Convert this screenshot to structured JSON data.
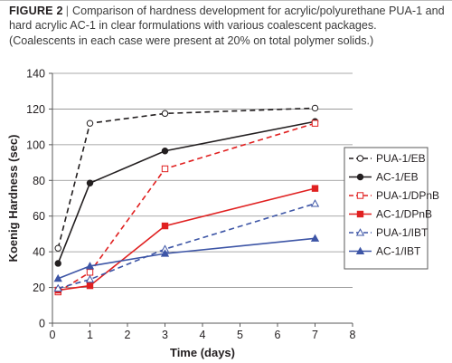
{
  "caption": {
    "figure_label": "FIGURE 2",
    "separator": "|",
    "text": "Comparison of hardness development for acrylic/polyurethane PUA-1 and hard acrylic AC-1 in clear formulations with various coalescent packages. (Coalescents in each case were present at 20% on total polymer solids.)"
  },
  "chart_data": {
    "type": "line",
    "title": "",
    "xlabel": "Time (days)",
    "ylabel": "Koenig Hardness (sec)",
    "xlim": [
      0,
      8
    ],
    "ylim": [
      0,
      140
    ],
    "xticks": [
      0,
      1,
      2,
      3,
      4,
      5,
      6,
      7,
      8
    ],
    "yticks": [
      0,
      20,
      40,
      60,
      80,
      100,
      120,
      140
    ],
    "grid": "horizontal",
    "legend_position": "right",
    "series": [
      {
        "name": "PUA-1/EB",
        "color": "#231f20",
        "dash": "dashed",
        "marker": "circle-open",
        "x": [
          0.15,
          1,
          3,
          7
        ],
        "y": [
          42,
          112,
          117.5,
          120.5
        ]
      },
      {
        "name": "AC-1/EB",
        "color": "#231f20",
        "dash": "solid",
        "marker": "circle-filled",
        "x": [
          0.15,
          1,
          3,
          7
        ],
        "y": [
          33.5,
          78.5,
          96.5,
          113
        ]
      },
      {
        "name": "PUA-1/DPnB",
        "color": "#e02020",
        "dash": "dashed",
        "marker": "square-open",
        "x": [
          0.15,
          1,
          3,
          7
        ],
        "y": [
          17.5,
          28.5,
          86.5,
          112
        ]
      },
      {
        "name": "AC-1/DPnB",
        "color": "#e02020",
        "dash": "solid",
        "marker": "square-filled",
        "x": [
          0.15,
          1,
          3,
          7
        ],
        "y": [
          18.5,
          21,
          54.5,
          75.5
        ]
      },
      {
        "name": "PUA-1/IBT",
        "color": "#3d55a6",
        "dash": "dashed",
        "marker": "triangle-open",
        "x": [
          0.15,
          1,
          3,
          7
        ],
        "y": [
          19.5,
          24.5,
          41.5,
          67
        ]
      },
      {
        "name": "AC-1/IBT",
        "color": "#3d55a6",
        "dash": "solid",
        "marker": "triangle-filled",
        "x": [
          0.15,
          1,
          3,
          7
        ],
        "y": [
          25,
          32,
          39,
          47.5
        ]
      }
    ]
  }
}
